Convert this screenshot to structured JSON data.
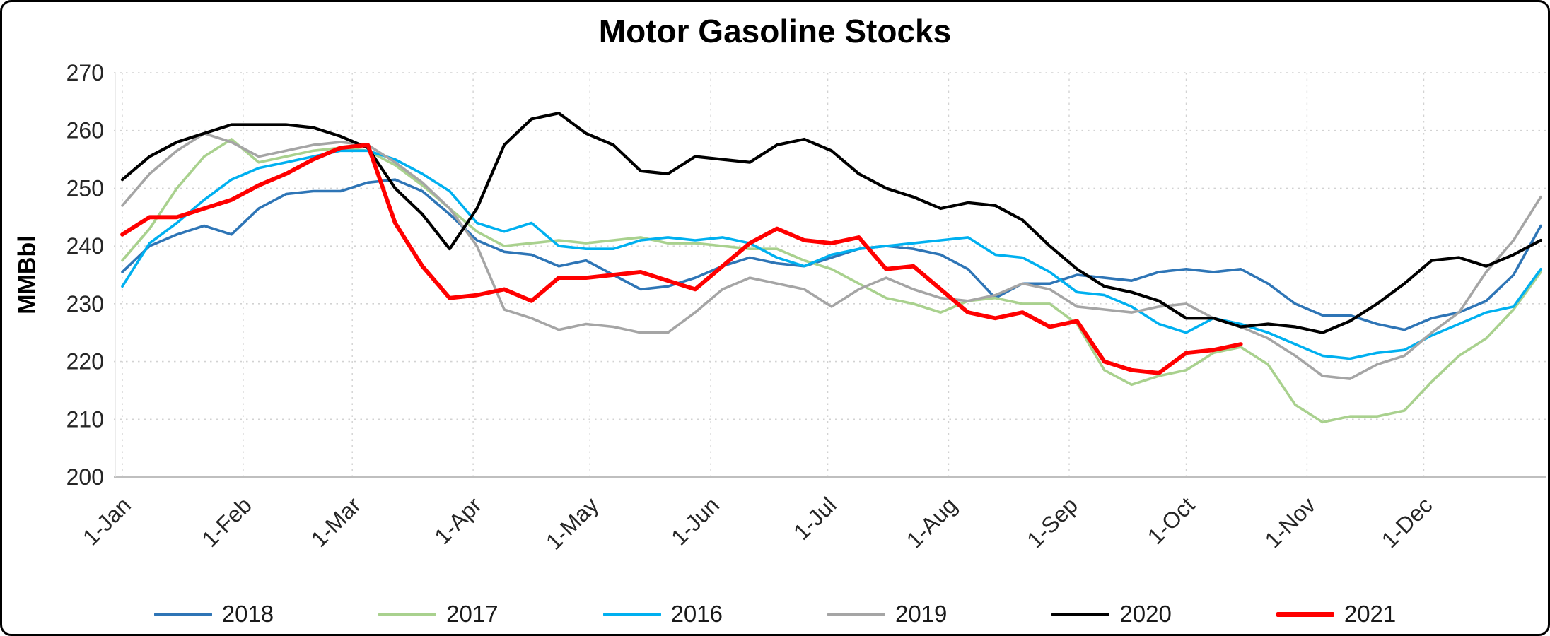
{
  "window": {
    "background_color": "#FFFFFF",
    "border_color": "#000000"
  },
  "axis": {
    "tick_color": "#262626",
    "axis_line_color": "#BFBFBF",
    "grid_color": "#D2D2D2"
  },
  "chart_data": {
    "type": "line",
    "title": "Motor Gasoline Stocks",
    "ylabel": "MMBbl",
    "ylim": [
      200,
      270
    ],
    "yticks": [
      200,
      210,
      220,
      230,
      240,
      250,
      260,
      270
    ],
    "grid": {
      "horizontal": true,
      "vertical": true,
      "style": "dotted"
    },
    "legend_position": "bottom",
    "x_unit": "week-of-year",
    "weeks_per_year": 52,
    "x_tick_labels": [
      "1-Jan",
      "1-Feb",
      "1-Mar",
      "1-Apr",
      "1-May",
      "1-Jun",
      "1-Jul",
      "1-Aug",
      "1-Sep",
      "1-Oct",
      "1-Nov",
      "1-Dec"
    ],
    "x_tick_week_positions": [
      0,
      4.43,
      8.43,
      12.86,
      17.14,
      21.57,
      25.86,
      30.29,
      34.71,
      39.0,
      43.43,
      47.71
    ],
    "series": [
      {
        "name": "2018",
        "color": "#2E75B6",
        "line_width": 3.6,
        "values": [
          235.5,
          240,
          242,
          243.5,
          242,
          246.5,
          249,
          249.5,
          249.5,
          251,
          251.5,
          249.5,
          245.5,
          241,
          239,
          238.5,
          236.5,
          237.5,
          235,
          232.5,
          233,
          234.5,
          236.5,
          238,
          237,
          236.5,
          238,
          239.5,
          240,
          239.5,
          238.5,
          236,
          231,
          233.5,
          233.5,
          235,
          234.5,
          234,
          235.5,
          236,
          235.5,
          236,
          233.5,
          230,
          228,
          228,
          226.5,
          225.5,
          227.5,
          228.5,
          230.5,
          235,
          243.5
        ]
      },
      {
        "name": "2017",
        "color": "#A9D18E",
        "line_width": 3.6,
        "values": [
          237.5,
          243,
          250,
          255.5,
          258.5,
          254.5,
          255.5,
          256.5,
          257,
          256.5,
          254,
          250.5,
          246.5,
          242.5,
          240,
          240.5,
          241,
          240.5,
          241,
          241.5,
          240.5,
          240.5,
          240,
          239.5,
          239.5,
          237.5,
          236,
          233.5,
          231,
          230,
          228.5,
          230.5,
          231,
          230,
          230,
          226.5,
          218.5,
          216,
          217.5,
          218.5,
          221.5,
          222.5,
          219.5,
          212.5,
          209.5,
          210.5,
          210.5,
          211.5,
          216.5,
          221,
          224,
          229,
          235.5
        ]
      },
      {
        "name": "2016",
        "color": "#00B0F0",
        "line_width": 3.6,
        "values": [
          233,
          240.5,
          244,
          248,
          251.5,
          253.5,
          254.5,
          255.5,
          256.5,
          256.5,
          255,
          252.5,
          249.5,
          244,
          242.5,
          244,
          240,
          239.5,
          239.5,
          241,
          241.5,
          241,
          241.5,
          240.5,
          238,
          236.5,
          238.5,
          239.5,
          240,
          240.5,
          241,
          241.5,
          238.5,
          238,
          235.5,
          232,
          231.5,
          229.5,
          226.5,
          225,
          227.5,
          226.5,
          225,
          223,
          221,
          220.5,
          221.5,
          222,
          224.5,
          226.5,
          228.5,
          229.5,
          236
        ]
      },
      {
        "name": "2019",
        "color": "#A5A5A5",
        "line_width": 3.6,
        "values": [
          247,
          252.5,
          256.5,
          259.5,
          258,
          255.5,
          256.5,
          257.5,
          258,
          257.5,
          254.5,
          251,
          246.5,
          240,
          229,
          227.5,
          225.5,
          226.5,
          226,
          225,
          225,
          228.5,
          232.5,
          234.5,
          233.5,
          232.5,
          229.5,
          232.5,
          234.5,
          232.5,
          231,
          230.5,
          231.5,
          233.5,
          232.5,
          229.5,
          229,
          228.5,
          229.5,
          230,
          227.5,
          226,
          224,
          221,
          217.5,
          217,
          219.5,
          221,
          225,
          228.5,
          235.5,
          241,
          248.5
        ]
      },
      {
        "name": "2020",
        "color": "#000000",
        "line_width": 4.2,
        "values": [
          251.5,
          255.5,
          258,
          259.5,
          261,
          261,
          261,
          260.5,
          259,
          257,
          250,
          245.5,
          239.5,
          246.5,
          257.5,
          262,
          263,
          259.5,
          257.5,
          253,
          252.5,
          255.5,
          255,
          254.5,
          257.5,
          258.5,
          256.5,
          252.5,
          250,
          248.5,
          246.5,
          247.5,
          247,
          244.5,
          240,
          236,
          233,
          232,
          230.5,
          227.5,
          227.5,
          226,
          226.5,
          226,
          225,
          227,
          230,
          233.5,
          237.5,
          238,
          236.5,
          238.5,
          241
        ]
      },
      {
        "name": "2021",
        "color": "#FF0000",
        "line_width": 5.8,
        "values": [
          242,
          245,
          245,
          246.5,
          248,
          250.5,
          252.5,
          255,
          257,
          257.5,
          244,
          236.5,
          231,
          231.5,
          232.5,
          230.5,
          234.5,
          234.5,
          235,
          235.5,
          234,
          232.5,
          236.5,
          240.5,
          243,
          241,
          240.5,
          241.5,
          236,
          236.5,
          232.5,
          228.5,
          227.5,
          228.5,
          226,
          227,
          220,
          218.5,
          218,
          221.5,
          222,
          223
        ]
      }
    ]
  }
}
